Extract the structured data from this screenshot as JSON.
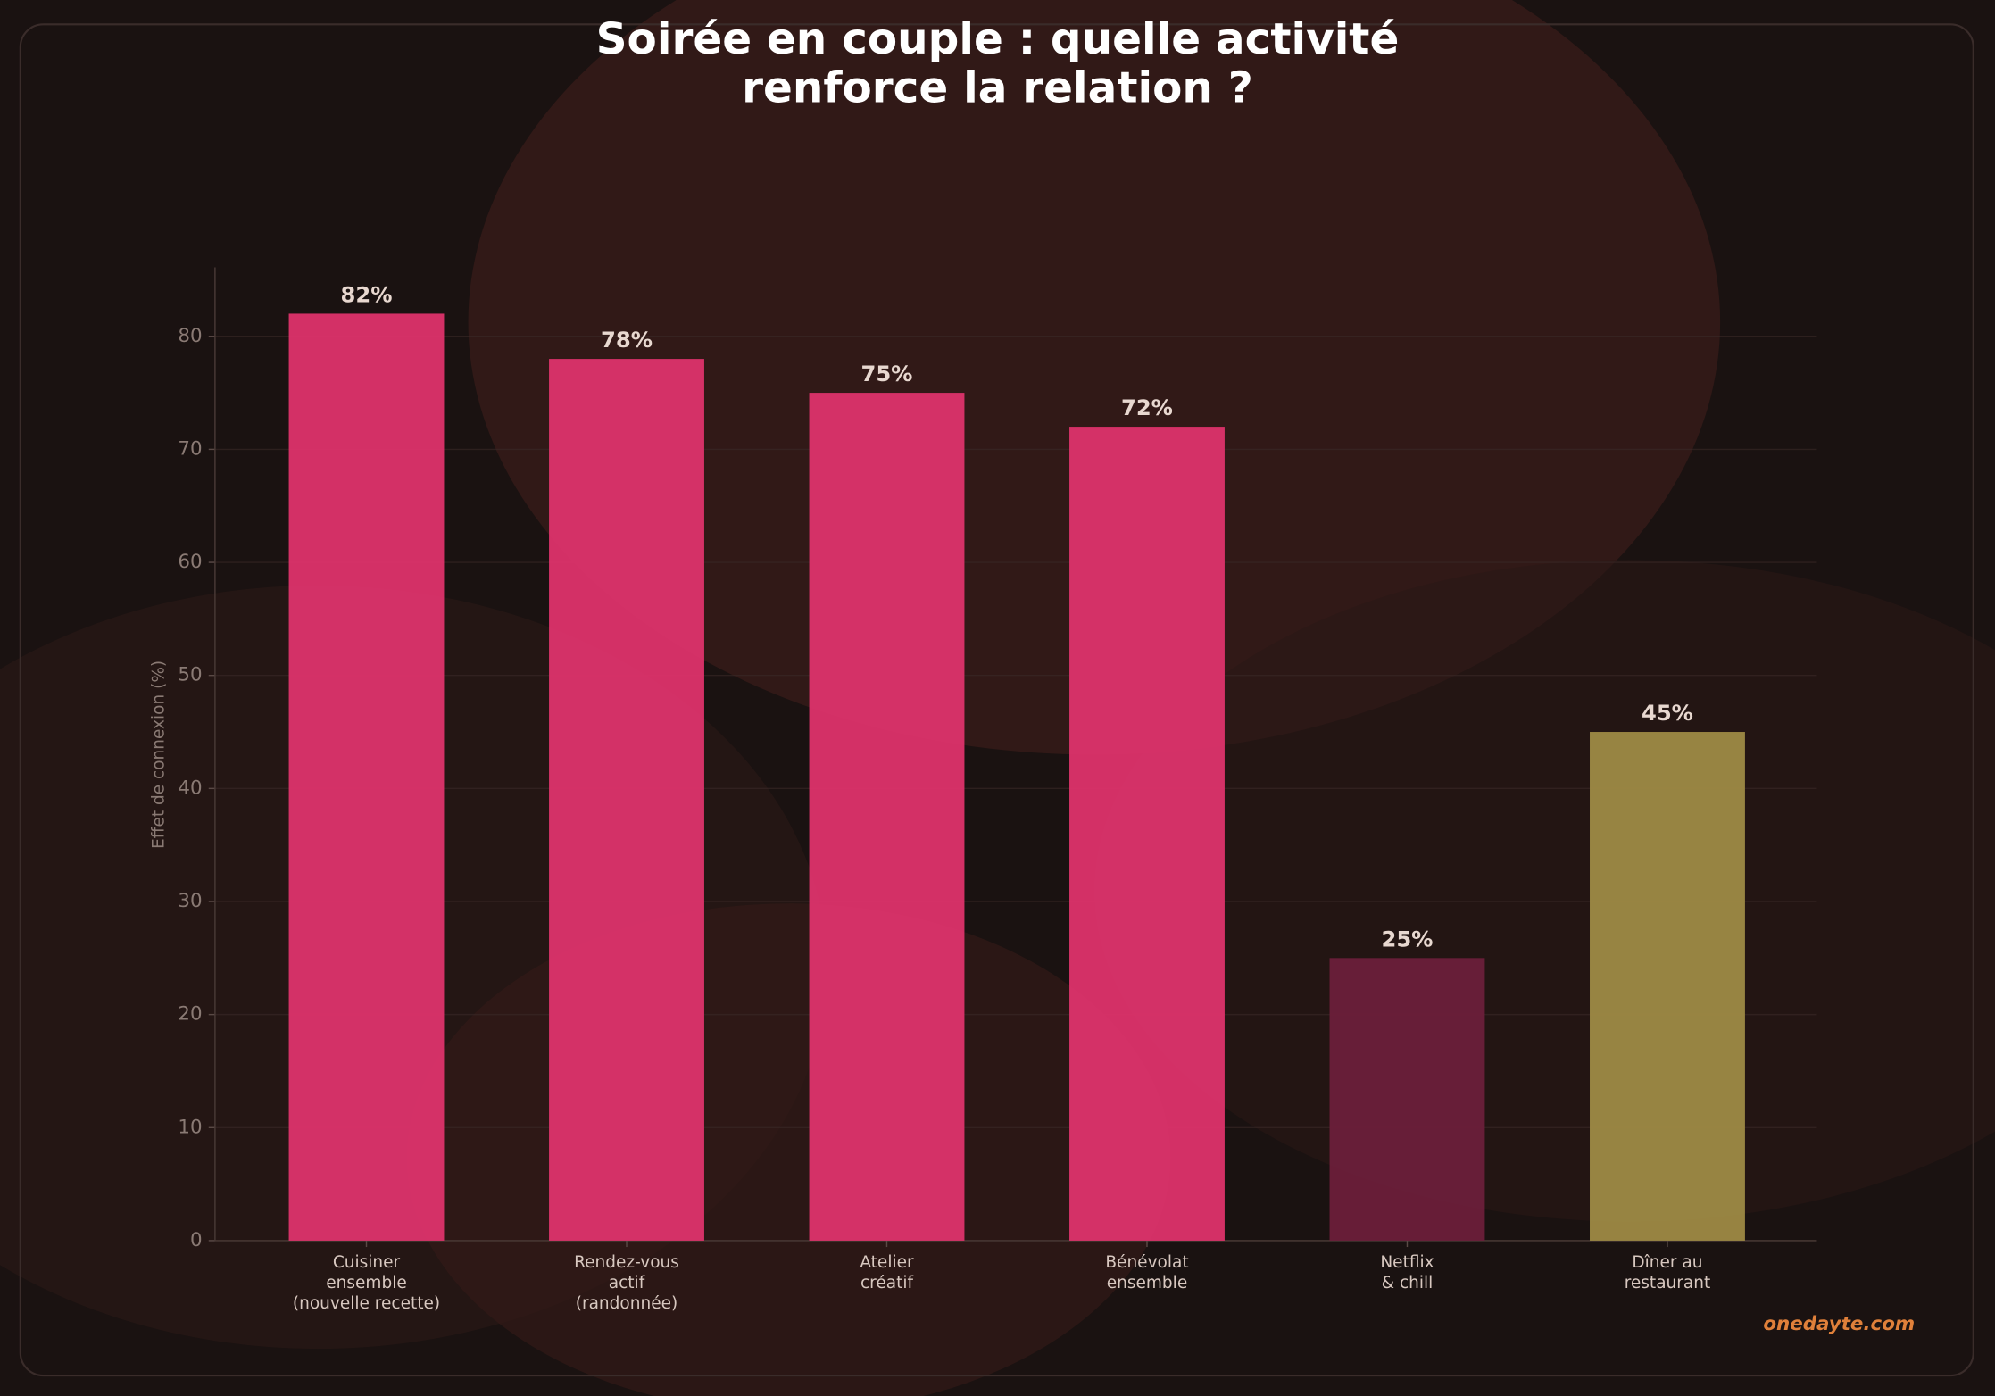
{
  "chart_data": {
    "type": "bar",
    "title": "Soirée en couple : quelle activité\nrenforce la relation ?",
    "ylabel": "Effet de connexion (%)",
    "categories": [
      "Cuisiner\nensemble\n(nouvelle recette)",
      "Rendez-vous\nactif\n(randonnée)",
      "Atelier\ncréatif",
      "Bénévolat\nensemble",
      "Netflix\n& chill",
      "Dîner au\nrestaurant"
    ],
    "values": [
      82,
      78,
      75,
      72,
      25,
      45
    ],
    "value_labels": [
      "82%",
      "78%",
      "75%",
      "72%",
      "25%",
      "45%"
    ],
    "colors": [
      "#dd336b",
      "#dd336b",
      "#dd336b",
      "#dd336b",
      "#6b1f3a",
      "#9e8a44"
    ],
    "ylim": [
      0,
      86.1
    ],
    "yticks": [
      0,
      10,
      20,
      30,
      40,
      50,
      60,
      70,
      80
    ],
    "grid": true,
    "watermark": "onedayte.com"
  }
}
